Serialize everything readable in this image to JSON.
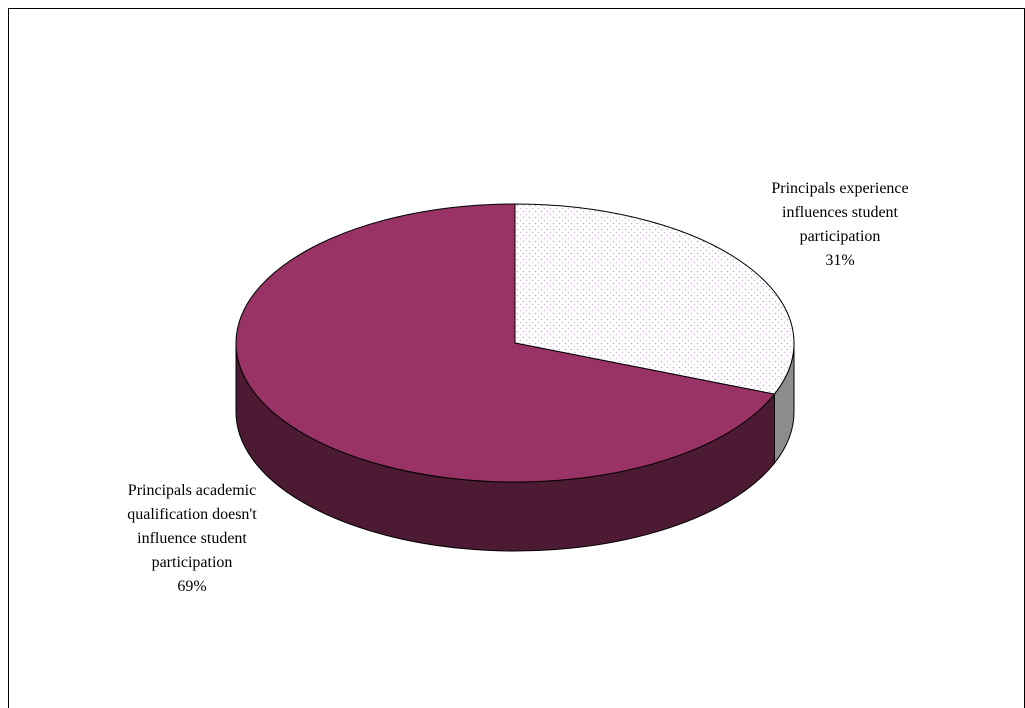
{
  "chart_data": {
    "type": "pie",
    "style": "3d",
    "title": "",
    "slices": [
      {
        "label_lines": [
          "Principals experience",
          "influences student",
          "participation"
        ],
        "percent_label": "31%",
        "value": 31,
        "color": "#f5eff8",
        "pattern": "dotted",
        "side_color": "#8c8c8c"
      },
      {
        "label_lines": [
          "Principals academic",
          "qualification doesn't",
          "influence student",
          "participation"
        ],
        "percent_label": "69%",
        "value": 69,
        "color": "#993366",
        "side_color": "#4d1a33"
      }
    ]
  }
}
